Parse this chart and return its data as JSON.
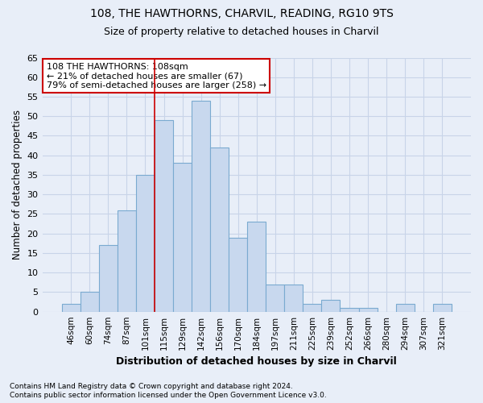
{
  "title1": "108, THE HAWTHORNS, CHARVIL, READING, RG10 9TS",
  "title2": "Size of property relative to detached houses in Charvil",
  "xlabel": "Distribution of detached houses by size in Charvil",
  "ylabel": "Number of detached properties",
  "categories": [
    "46sqm",
    "60sqm",
    "74sqm",
    "87sqm",
    "101sqm",
    "115sqm",
    "129sqm",
    "142sqm",
    "156sqm",
    "170sqm",
    "184sqm",
    "197sqm",
    "211sqm",
    "225sqm",
    "239sqm",
    "252sqm",
    "266sqm",
    "280sqm",
    "294sqm",
    "307sqm",
    "321sqm"
  ],
  "values": [
    2,
    5,
    17,
    26,
    35,
    49,
    38,
    54,
    42,
    19,
    23,
    7,
    7,
    2,
    3,
    1,
    1,
    0,
    2,
    0,
    2
  ],
  "bar_color": "#c8d8ee",
  "bar_edge_color": "#7aaad0",
  "ylim": [
    0,
    65
  ],
  "yticks": [
    0,
    5,
    10,
    15,
    20,
    25,
    30,
    35,
    40,
    45,
    50,
    55,
    60,
    65
  ],
  "annotation_text": "108 THE HAWTHORNS: 108sqm\n← 21% of detached houses are smaller (67)\n79% of semi-detached houses are larger (258) →",
  "vline_x_index": 4.5,
  "annotation_box_color": "white",
  "annotation_box_edge_color": "#cc0000",
  "vline_color": "#cc0000",
  "footer1": "Contains HM Land Registry data © Crown copyright and database right 2024.",
  "footer2": "Contains public sector information licensed under the Open Government Licence v3.0.",
  "background_color": "#e8eef8",
  "grid_color": "#c8d4e8"
}
